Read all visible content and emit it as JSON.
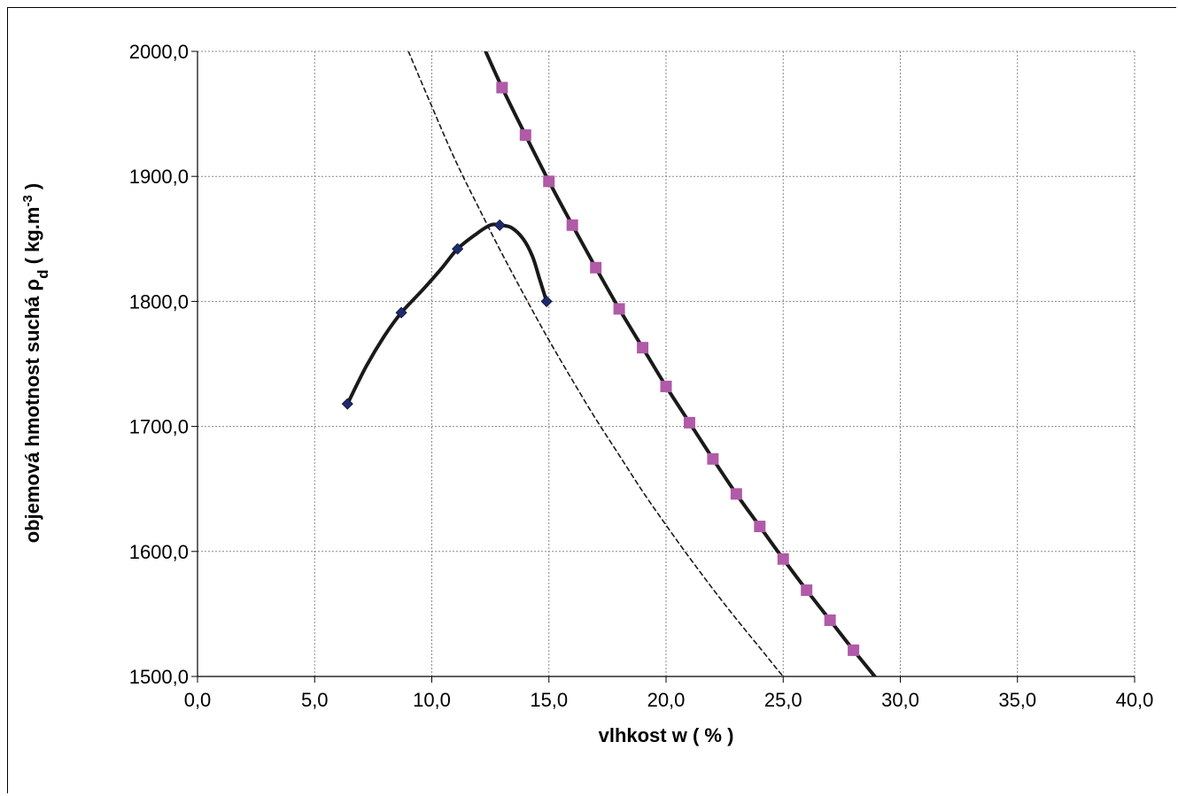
{
  "chart_data": {
    "type": "line",
    "title": "",
    "xlabel": "vlhkost w  ( % )",
    "ylabel": {
      "main": "objemová hmotnost suchá  ρ",
      "sub": "d",
      "unit": "  ( kg.m",
      "sup": "-3",
      "close": " )"
    },
    "xlim": [
      0,
      40
    ],
    "ylim": [
      1500,
      2000
    ],
    "x_ticks": [
      "0,0",
      "5,0",
      "10,0",
      "15,0",
      "20,0",
      "25,0",
      "30,0",
      "35,0",
      "40,0"
    ],
    "y_ticks": [
      "1500,0",
      "1600,0",
      "1700,0",
      "1800,0",
      "1900,0",
      "2000,0"
    ],
    "grid": true,
    "legend": "none",
    "series": [
      {
        "kind": "compaction-curve",
        "style": "solid",
        "color": "#1a1a1a",
        "marker": "diamond",
        "marker_color": "#1f2a6b",
        "points": [
          [
            6.4,
            1718
          ],
          [
            8.7,
            1791
          ],
          [
            11.1,
            1842
          ],
          [
            12.9,
            1861
          ],
          [
            14.9,
            1800
          ]
        ],
        "curve": [
          [
            6.4,
            1718
          ],
          [
            7.2,
            1748
          ],
          [
            8.0,
            1773
          ],
          [
            8.7,
            1791
          ],
          [
            9.6,
            1809
          ],
          [
            10.4,
            1826
          ],
          [
            11.1,
            1842
          ],
          [
            11.9,
            1854
          ],
          [
            12.5,
            1861
          ],
          [
            12.9,
            1861
          ],
          [
            13.4,
            1859
          ],
          [
            13.9,
            1850
          ],
          [
            14.3,
            1836
          ],
          [
            14.6,
            1818
          ],
          [
            14.9,
            1800
          ]
        ]
      },
      {
        "kind": "saturation-line",
        "style": "solid",
        "color": "#1a1a1a",
        "marker": "square",
        "marker_color": "#b05aa8",
        "points": [
          [
            13,
            1971
          ],
          [
            14,
            1933
          ],
          [
            15,
            1896
          ],
          [
            16,
            1861
          ],
          [
            17,
            1827
          ],
          [
            18,
            1794
          ],
          [
            19,
            1763
          ],
          [
            20,
            1732
          ],
          [
            21,
            1703
          ],
          [
            22,
            1674
          ],
          [
            23,
            1646
          ],
          [
            24,
            1620
          ],
          [
            25,
            1594
          ],
          [
            26,
            1569
          ],
          [
            27,
            1545
          ],
          [
            28,
            1521
          ]
        ],
        "curve": [
          [
            12.3,
            2000
          ],
          [
            13,
            1971
          ],
          [
            14,
            1933
          ],
          [
            15,
            1896
          ],
          [
            16,
            1861
          ],
          [
            17,
            1827
          ],
          [
            18,
            1794
          ],
          [
            19,
            1763
          ],
          [
            20,
            1732
          ],
          [
            21,
            1703
          ],
          [
            22,
            1674
          ],
          [
            23,
            1646
          ],
          [
            24,
            1620
          ],
          [
            25,
            1594
          ],
          [
            26,
            1569
          ],
          [
            27,
            1545
          ],
          [
            28,
            1521
          ],
          [
            29,
            1498
          ]
        ]
      },
      {
        "kind": "reference-line",
        "style": "dashed",
        "color": "#1a1a1a",
        "marker": "none",
        "curve": [
          [
            9.0,
            2000
          ],
          [
            10,
            1956
          ],
          [
            11,
            1913
          ],
          [
            12,
            1875
          ],
          [
            13,
            1838
          ],
          [
            14,
            1803
          ],
          [
            15,
            1769
          ],
          [
            16,
            1737
          ],
          [
            17,
            1706
          ],
          [
            18,
            1677
          ],
          [
            19,
            1648
          ],
          [
            20,
            1621
          ],
          [
            21,
            1595
          ],
          [
            22,
            1570
          ],
          [
            23,
            1546
          ],
          [
            24,
            1523
          ],
          [
            25,
            1500
          ],
          [
            25.8,
            1484
          ]
        ]
      }
    ]
  }
}
